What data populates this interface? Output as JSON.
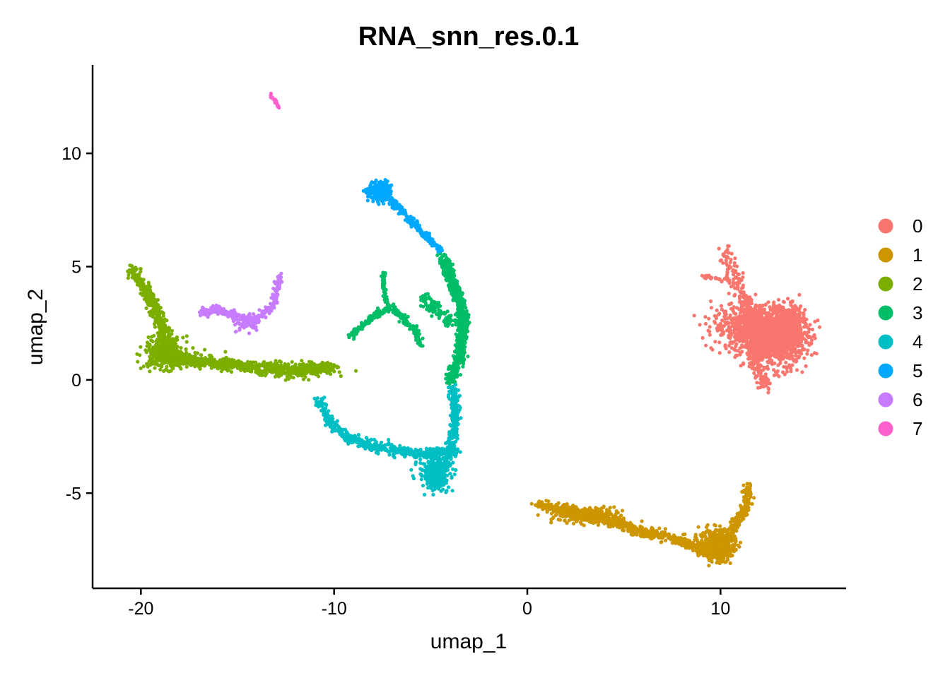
{
  "chart_data": {
    "type": "scatter",
    "title": "RNA_snn_res.0.1",
    "xlabel": "umap_1",
    "ylabel": "umap_2",
    "xlim": [
      -22.5,
      16.5
    ],
    "ylim": [
      -9.2,
      13.9
    ],
    "xticks": [
      -20,
      -10,
      0,
      10
    ],
    "xtick_labels": [
      "-20",
      "-10",
      "0",
      "10"
    ],
    "yticks": [
      -5,
      0,
      5,
      10
    ],
    "ytick_labels": [
      "-5",
      "0",
      "5",
      "10"
    ],
    "grid": false,
    "legend_position": "right",
    "legend": [
      "0",
      "1",
      "2",
      "3",
      "4",
      "5",
      "6",
      "7"
    ],
    "colors": [
      "#F8766D",
      "#CD9600",
      "#7CAE00",
      "#00BE67",
      "#00BFC4",
      "#00A9FF",
      "#C77CFF",
      "#FF61CC"
    ],
    "clusters": [
      {
        "name": "0",
        "segments": [
          {
            "path": [
              [
                10.2,
                5.7
              ],
              [
                11.0,
                4.0
              ],
              [
                12.0,
                2.2
              ],
              [
                11.8,
                0.6
              ],
              [
                12.5,
                -0.3
              ]
            ],
            "n": 300,
            "spread": 0.35
          },
          {
            "path": [
              [
                9.0,
                4.6
              ],
              [
                10.5,
                4.3
              ]
            ],
            "n": 30,
            "spread": 0.1
          }
        ],
        "blobs": [
          {
            "center": [
              12.8,
              1.8
            ],
            "rx": 1.6,
            "ry": 1.1,
            "n": 1200
          },
          {
            "center": [
              11.5,
              2.4
            ],
            "rx": 1.9,
            "ry": 1.0,
            "n": 500
          },
          {
            "center": [
              13.6,
              2.6
            ],
            "rx": 0.8,
            "ry": 0.7,
            "n": 250
          }
        ]
      },
      {
        "name": "1",
        "segments": [
          {
            "path": [
              [
                0.5,
                -5.5
              ],
              [
                3.0,
                -5.9
              ],
              [
                5.5,
                -6.6
              ],
              [
                8.0,
                -7.1
              ],
              [
                9.5,
                -7.6
              ],
              [
                10.5,
                -6.8
              ],
              [
                11.2,
                -5.8
              ],
              [
                11.5,
                -4.6
              ]
            ],
            "n": 800,
            "spread": 0.22
          }
        ],
        "blobs": [
          {
            "center": [
              9.8,
              -7.3
            ],
            "rx": 0.9,
            "ry": 0.7,
            "n": 450
          },
          {
            "center": [
              3.2,
              -6.0
            ],
            "rx": 1.8,
            "ry": 0.35,
            "n": 250
          }
        ]
      },
      {
        "name": "2",
        "segments": [
          {
            "path": [
              [
                -20.5,
                4.9
              ],
              [
                -19.5,
                3.6
              ],
              [
                -18.8,
                2.2
              ],
              [
                -18.5,
                1.0
              ],
              [
                -16.5,
                0.8
              ],
              [
                -14.0,
                0.5
              ],
              [
                -11.5,
                0.4
              ],
              [
                -10.0,
                0.6
              ]
            ],
            "n": 1100,
            "spread": 0.3
          }
        ],
        "blobs": [
          {
            "center": [
              -18.8,
              1.2
            ],
            "rx": 1.0,
            "ry": 0.7,
            "n": 350
          },
          {
            "center": [
              -10.8,
              0.5
            ],
            "rx": 0.9,
            "ry": 0.22,
            "n": 150
          }
        ]
      },
      {
        "name": "3",
        "segments": [
          {
            "path": [
              [
                -4.4,
                5.4
              ],
              [
                -3.8,
                4.2
              ],
              [
                -3.3,
                2.6
              ],
              [
                -3.5,
                1.0
              ],
              [
                -4.0,
                0.0
              ]
            ],
            "n": 700,
            "spread": 0.28
          },
          {
            "path": [
              [
                -9.2,
                1.9
              ],
              [
                -8.0,
                2.8
              ],
              [
                -7.0,
                3.2
              ],
              [
                -5.8,
                2.2
              ],
              [
                -5.5,
                1.5
              ]
            ],
            "n": 250,
            "spread": 0.15
          },
          {
            "path": [
              [
                -7.5,
                4.8
              ],
              [
                -7.4,
                3.8
              ],
              [
                -7.2,
                3.2
              ]
            ],
            "n": 60,
            "spread": 0.1
          },
          {
            "path": [
              [
                -5.4,
                3.6
              ],
              [
                -4.6,
                3.0
              ],
              [
                -4.0,
                2.5
              ]
            ],
            "n": 120,
            "spread": 0.28
          }
        ],
        "blobs": []
      },
      {
        "name": "4",
        "segments": [
          {
            "path": [
              [
                -10.8,
                -0.9
              ],
              [
                -10.2,
                -1.9
              ],
              [
                -9.2,
                -2.6
              ],
              [
                -7.5,
                -3.0
              ],
              [
                -5.5,
                -3.3
              ],
              [
                -3.6,
                -3.1
              ]
            ],
            "n": 500,
            "spread": 0.22
          },
          {
            "path": [
              [
                -3.8,
                -0.4
              ],
              [
                -3.7,
                -1.5
              ],
              [
                -3.9,
                -2.6
              ],
              [
                -4.2,
                -3.6
              ],
              [
                -4.8,
                -4.6
              ]
            ],
            "n": 350,
            "spread": 0.25
          }
        ],
        "blobs": [
          {
            "center": [
              -4.8,
              -4.1
            ],
            "rx": 0.8,
            "ry": 0.7,
            "n": 300
          }
        ]
      },
      {
        "name": "5",
        "segments": [
          {
            "path": [
              [
                -8.3,
                8.4
              ],
              [
                -7.3,
                8.1
              ],
              [
                -6.3,
                7.3
              ],
              [
                -5.3,
                6.4
              ],
              [
                -4.5,
                5.7
              ]
            ],
            "n": 280,
            "spread": 0.18
          }
        ],
        "blobs": [
          {
            "center": [
              -7.6,
              8.3
            ],
            "rx": 0.6,
            "ry": 0.45,
            "n": 180
          }
        ]
      },
      {
        "name": "6",
        "segments": [
          {
            "path": [
              [
                -16.9,
                3.0
              ],
              [
                -16.0,
                3.1
              ],
              [
                -15.0,
                2.8
              ],
              [
                -14.0,
                2.7
              ],
              [
                -13.2,
                3.2
              ],
              [
                -12.8,
                4.6
              ]
            ],
            "n": 260,
            "spread": 0.18
          }
        ],
        "blobs": [
          {
            "center": [
              -14.5,
              2.5
            ],
            "rx": 0.7,
            "ry": 0.35,
            "n": 60
          }
        ]
      },
      {
        "name": "7",
        "segments": [
          {
            "path": [
              [
                -13.3,
                12.6
              ],
              [
                -12.8,
                12.0
              ]
            ],
            "n": 30,
            "spread": 0.05
          }
        ],
        "blobs": []
      }
    ]
  }
}
